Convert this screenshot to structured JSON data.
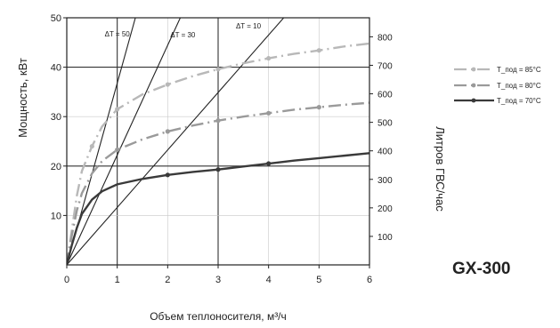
{
  "chart_data": {
    "type": "line",
    "model": "GX-300",
    "xlabel": "Объем теплоносителя, м³/ч",
    "ylabel_left": "Мощность, кВт",
    "ylabel_right": "Литров ГВС/час",
    "xlim": [
      0,
      6
    ],
    "ylim_left": [
      0,
      50
    ],
    "ylim_right": [
      0,
      866.7
    ],
    "x_ticks": [
      "0",
      "1",
      "2",
      "3",
      "4",
      "5",
      "6"
    ],
    "y_left_ticks": [
      "10",
      "20",
      "30",
      "40",
      "50"
    ],
    "y_right_ticks": [
      "100",
      "200",
      "300",
      "400",
      "500",
      "600",
      "700",
      "800"
    ],
    "grid": {
      "bold_y": [
        20,
        40
      ],
      "bold_x": [
        1,
        3
      ]
    },
    "series": [
      {
        "name": "T_под = 85°C",
        "color": "#b8b8b8",
        "dash": "14,5,2,5",
        "points": [
          [
            0,
            0
          ],
          [
            0.1,
            7
          ],
          [
            0.2,
            14
          ],
          [
            0.3,
            19
          ],
          [
            0.5,
            24
          ],
          [
            0.7,
            28
          ],
          [
            1.0,
            31.5
          ],
          [
            1.5,
            34.5
          ],
          [
            2.0,
            36.5
          ],
          [
            2.5,
            38.2
          ],
          [
            3.0,
            39.6
          ],
          [
            3.5,
            40.8
          ],
          [
            4.0,
            41.8
          ],
          [
            4.5,
            42.7
          ],
          [
            5.0,
            43.4
          ],
          [
            5.5,
            44.2
          ],
          [
            6.0,
            44.8
          ]
        ],
        "markers": [
          0.5,
          1.0,
          2.0,
          3.0,
          4.0,
          5.0
        ]
      },
      {
        "name": "T_под = 80°C",
        "color": "#9a9a9a",
        "dash": "14,5,2,5",
        "points": [
          [
            0,
            0
          ],
          [
            0.1,
            6
          ],
          [
            0.2,
            11
          ],
          [
            0.3,
            14.5
          ],
          [
            0.5,
            18.5
          ],
          [
            0.7,
            21
          ],
          [
            1.0,
            23.3
          ],
          [
            1.5,
            25.4
          ],
          [
            2.0,
            27
          ],
          [
            2.5,
            28.2
          ],
          [
            3.0,
            29.2
          ],
          [
            3.5,
            30
          ],
          [
            4.0,
            30.7
          ],
          [
            4.5,
            31.4
          ],
          [
            5.0,
            31.9
          ],
          [
            5.5,
            32.4
          ],
          [
            6.0,
            32.8
          ]
        ],
        "markers": [
          1.0,
          2.0,
          3.0,
          4.0,
          5.0
        ]
      },
      {
        "name": "T_под = 70°C",
        "color": "#3a3a3a",
        "dash": "",
        "points": [
          [
            0,
            0
          ],
          [
            0.1,
            4
          ],
          [
            0.2,
            7.5
          ],
          [
            0.3,
            10.3
          ],
          [
            0.5,
            13.2
          ],
          [
            0.7,
            14.9
          ],
          [
            1.0,
            16.3
          ],
          [
            1.5,
            17.4
          ],
          [
            2.0,
            18.2
          ],
          [
            2.5,
            18.8
          ],
          [
            3.0,
            19.3
          ],
          [
            3.5,
            19.9
          ],
          [
            4.0,
            20.5
          ],
          [
            4.5,
            21.1
          ],
          [
            5.0,
            21.6
          ],
          [
            5.5,
            22.1
          ],
          [
            6.0,
            22.6
          ]
        ],
        "markers": [
          2.0,
          3.0,
          4.0
        ]
      }
    ],
    "dt_lines": [
      {
        "label": "ΔT = 50",
        "x_end": 1.36,
        "y_end": 50
      },
      {
        "label": "ΔT = 30",
        "x_end": 2.25,
        "y_end": 50
      },
      {
        "label": "ΔT = 10",
        "x_end": 4.3,
        "y_end": 50
      }
    ],
    "legend": {
      "position": "right",
      "entries": [
        "T_под = 85°C",
        "T_под = 80°C",
        "T_под = 70°C"
      ]
    }
  }
}
